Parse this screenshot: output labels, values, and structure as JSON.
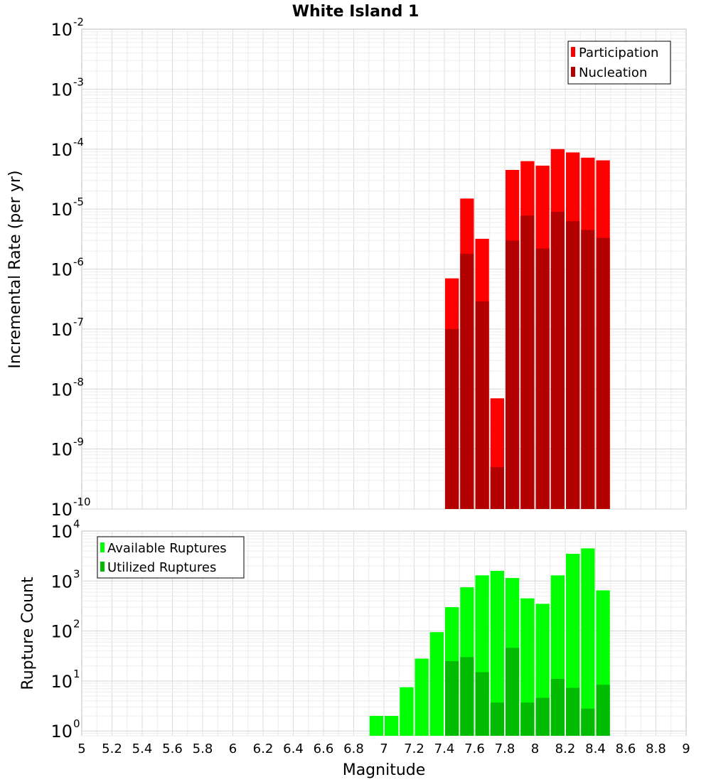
{
  "chart_data": [
    {
      "type": "bar",
      "panel": "top",
      "title": "White Island 1",
      "xlabel": "",
      "ylabel": "Incremental Rate (per yr)",
      "yscale": "log",
      "ylim": [
        1e-10,
        0.01
      ],
      "xlim": [
        5,
        9
      ],
      "bin_width": 0.1,
      "yticks": [
        {
          "base": "10",
          "exp": "-10"
        },
        {
          "base": "10",
          "exp": "-9"
        },
        {
          "base": "10",
          "exp": "-8"
        },
        {
          "base": "10",
          "exp": "-7"
        },
        {
          "base": "10",
          "exp": "-6"
        },
        {
          "base": "10",
          "exp": "-5"
        },
        {
          "base": "10",
          "exp": "-4"
        },
        {
          "base": "10",
          "exp": "-3"
        },
        {
          "base": "10",
          "exp": "-2"
        }
      ],
      "legend": {
        "position": "top-right"
      },
      "grid": true,
      "x": [
        7.45,
        7.55,
        7.65,
        7.75,
        7.85,
        7.95,
        8.05,
        8.15,
        8.25,
        8.35,
        8.45
      ],
      "series": [
        {
          "name": "Participation",
          "color": "#ff0000",
          "values": [
            7e-07,
            1.5e-05,
            3.2e-06,
            7e-09,
            4.5e-05,
            6.3e-05,
            5.3e-05,
            0.0001,
            8.8e-05,
            7.2e-05,
            6.5e-05
          ]
        },
        {
          "name": "Nucleation",
          "color": "#b30000",
          "values": [
            1e-07,
            1.8e-06,
            2.9e-07,
            5e-10,
            3e-06,
            7.8e-06,
            2.2e-06,
            9e-06,
            6.3e-06,
            4.5e-06,
            3.3e-06
          ]
        }
      ]
    },
    {
      "type": "bar",
      "panel": "bottom",
      "title": "",
      "xlabel": "Magnitude",
      "ylabel": "Rupture Count",
      "yscale": "log",
      "ylim": [
        0.8,
        10000
      ],
      "xlim": [
        5,
        9
      ],
      "bin_width": 0.1,
      "yticks": [
        {
          "base": "10",
          "exp": "0",
          "value": 1
        },
        {
          "base": "10",
          "exp": "1",
          "value": 10
        },
        {
          "base": "10",
          "exp": "2",
          "value": 100
        },
        {
          "base": "10",
          "exp": "3",
          "value": 1000
        },
        {
          "base": "10",
          "exp": "4",
          "value": 10000
        }
      ],
      "xticks": [
        "5",
        "5.2",
        "5.4",
        "5.6",
        "5.8",
        "6",
        "6.2",
        "6.4",
        "6.6",
        "6.8",
        "7",
        "7.2",
        "7.4",
        "7.6",
        "7.8",
        "8",
        "8.2",
        "8.4",
        "8.6",
        "8.8",
        "9"
      ],
      "legend": {
        "position": "top-left"
      },
      "grid": true,
      "x": [
        6.95,
        7.05,
        7.15,
        7.25,
        7.35,
        7.45,
        7.55,
        7.65,
        7.75,
        7.85,
        7.95,
        8.05,
        8.15,
        8.25,
        8.35,
        8.45
      ],
      "series": [
        {
          "name": "Available Ruptures",
          "color": "#00ff00",
          "values": [
            2,
            2,
            7.5,
            28,
            95,
            300,
            750,
            1300,
            1600,
            1150,
            450,
            350,
            1300,
            3500,
            4500,
            650
          ]
        },
        {
          "name": "Utilized Ruptures",
          "color": "#00bb00",
          "values": [
            null,
            null,
            null,
            null,
            null,
            25,
            30,
            15,
            3.7,
            46,
            3.7,
            4.6,
            11,
            7.3,
            2.8,
            8.4
          ]
        }
      ]
    }
  ]
}
